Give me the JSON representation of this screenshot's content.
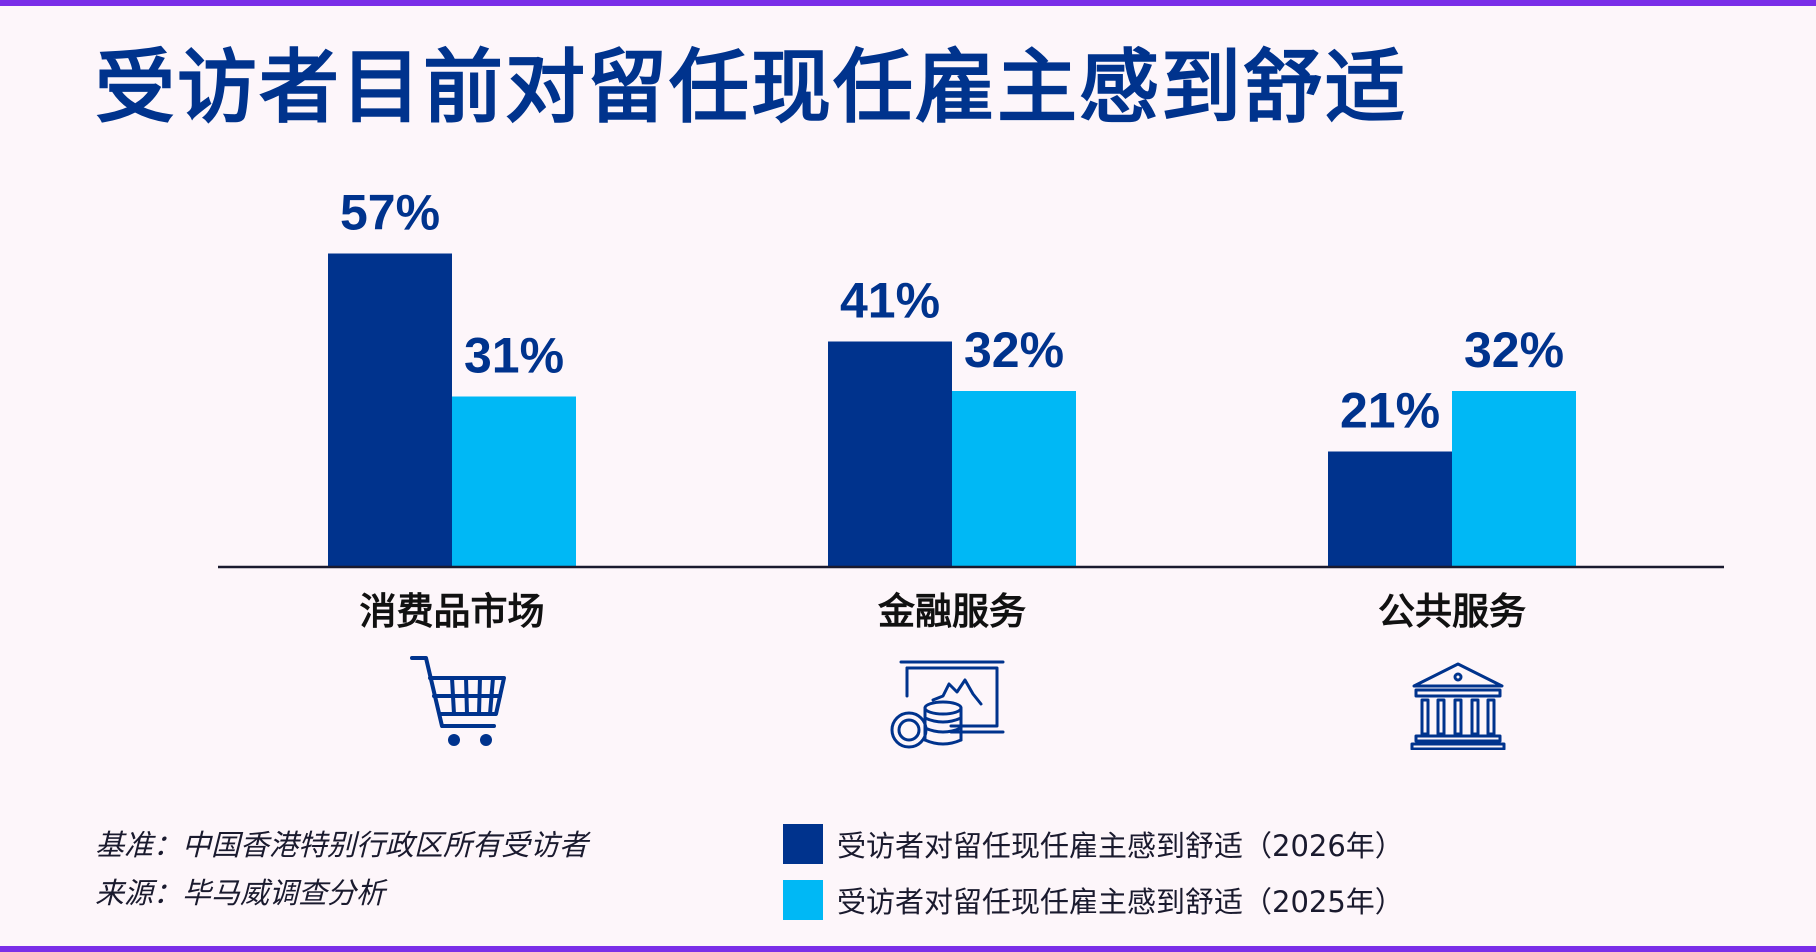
{
  "title": "受访者目前对留任现任雇主感到舒适",
  "colors": {
    "dark": "#00338d",
    "light": "#00b8f5",
    "accent": "#7a2ee8"
  },
  "chart_data": {
    "type": "bar",
    "categories": [
      "消费品市场",
      "金融服务",
      "公共服务"
    ],
    "series": [
      {
        "name": "受访者对留任现任雇主感到舒适（2026年）",
        "values": [
          57,
          41,
          21
        ]
      },
      {
        "name": "受访者对留任现任雇主感到舒适（2025年）",
        "values": [
          31,
          32,
          32
        ]
      }
    ],
    "value_suffix": "%",
    "ylim": [
      0,
      60
    ],
    "grid": false,
    "legend_position": "bottom"
  },
  "icons": [
    "shopping-cart-icon",
    "finance-chart-coins-icon",
    "bank-building-icon"
  ],
  "footnotes": {
    "base": "基准：中国香港特别行政区所有受访者",
    "source": "来源：毕马威调查分析"
  }
}
